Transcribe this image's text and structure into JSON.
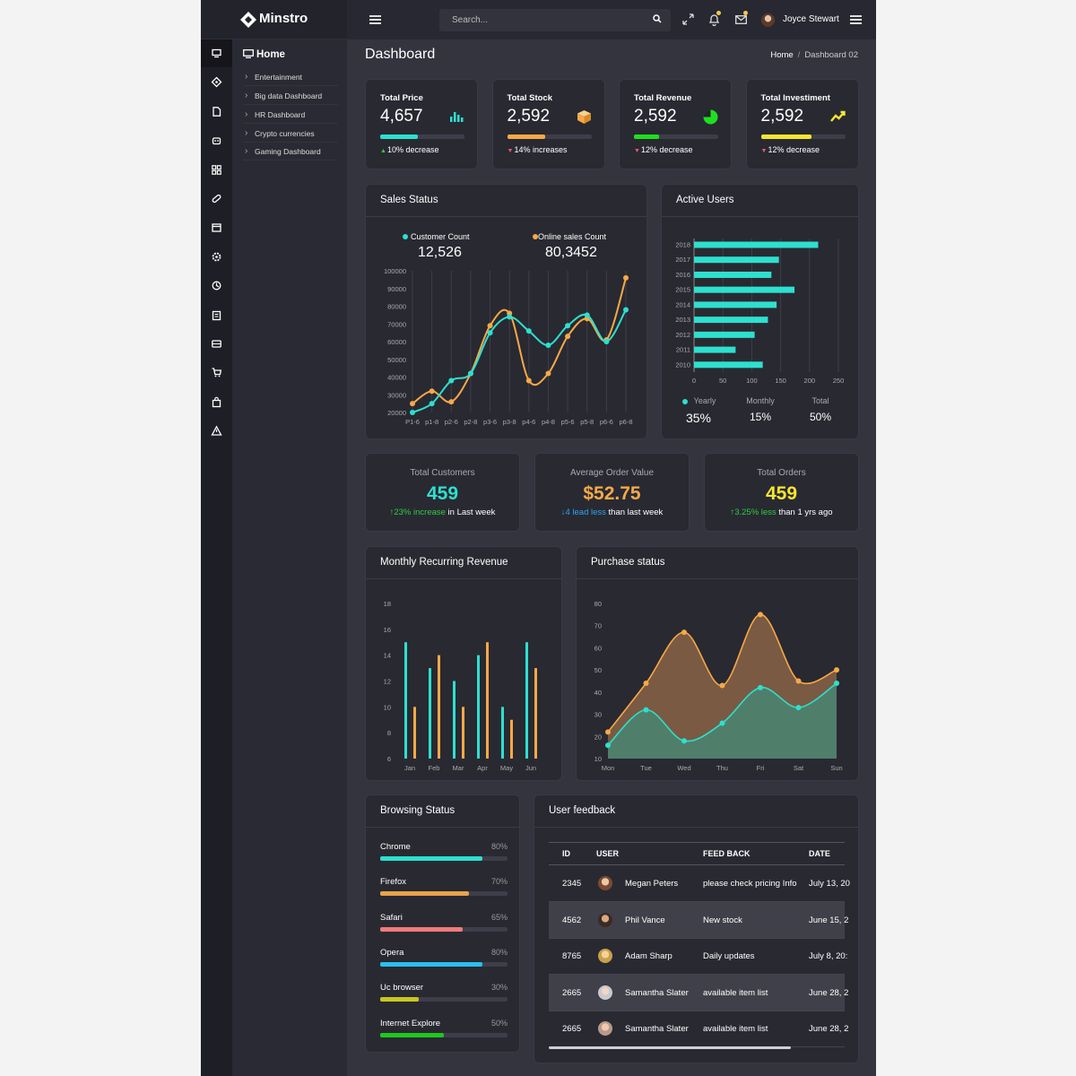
{
  "app": {
    "name": "Minstro"
  },
  "topbar": {
    "search_placeholder": "Search...",
    "user_name": "Joyce Stewart"
  },
  "sidebar": {
    "icons": [
      "monitor-icon",
      "diamond-icon",
      "document-icon",
      "robot-icon",
      "grid-icon",
      "pill-icon",
      "calendar-icon",
      "settings-icon",
      "tracking-icon",
      "clipboard-icon",
      "ticket-icon",
      "cart-icon",
      "bag-icon",
      "warning-icon"
    ],
    "submenu_title": "Home",
    "items": [
      "Entertainment",
      "Big data Dashboard",
      "HR Dashboard",
      "Crypto currencies",
      "Gaming Dashboard"
    ]
  },
  "page": {
    "title": "Dashboard",
    "breadcrumb": {
      "home": "Home",
      "current": "Dashboard 02"
    }
  },
  "stats": [
    {
      "label": "Total Price",
      "value": "4,657",
      "change": "10% decrease",
      "direction": "up",
      "progress": 0.45,
      "color": "#2de0cf",
      "icon": "bar-chart-icon"
    },
    {
      "label": "Total Stock",
      "value": "2,592",
      "change": "14% increases",
      "direction": "down",
      "progress": 0.45,
      "color": "#f6a947",
      "icon": "box-icon"
    },
    {
      "label": "Total Revenue",
      "value": "2,592",
      "change": "12% decrease",
      "direction": "down",
      "progress": 0.3,
      "color": "#1ee01e",
      "icon": "pie-icon"
    },
    {
      "label": "Total Investiment",
      "value": "2,592",
      "change": "12% decrease",
      "direction": "down",
      "progress": 0.6,
      "color": "#f5e630",
      "icon": "trend-up-icon"
    }
  ],
  "sales_status": {
    "title": "Sales Status",
    "legend": [
      {
        "name": "Customer Count",
        "value": "12,526",
        "color": "#2de0cf"
      },
      {
        "name": "Online sales Count",
        "value": "80,3452",
        "color": "#f6a947"
      }
    ]
  },
  "active_users": {
    "title": "Active Users",
    "stats": [
      {
        "label": "Yearly",
        "value": "35%"
      },
      {
        "label": "Monthly",
        "value": "15%"
      },
      {
        "label": "Total",
        "value": "50%"
      }
    ]
  },
  "kpis": [
    {
      "label": "Total Customers",
      "value": "459",
      "value_color": "#2de0cf",
      "delta": "23% increase",
      "delta_color": "#2ecc40",
      "suffix": " in Last week",
      "arrow": "up"
    },
    {
      "label": "Average Order Value",
      "value": "$52.75",
      "value_color": "#f6a947",
      "delta": "4 lead less",
      "delta_color": "#29a8f0",
      "suffix": " than last week",
      "arrow": "down"
    },
    {
      "label": "Total Orders",
      "value": "459",
      "value_color": "#f5e630",
      "delta": "3.25% less",
      "delta_color": "#2ecc40",
      "suffix": " than 1 yrs ago",
      "arrow": "up"
    }
  ],
  "mrr": {
    "title": "Monthly Recurring Revenue"
  },
  "purchase": {
    "title": "Purchase status"
  },
  "browsing": {
    "title": "Browsing Status",
    "items": [
      {
        "name": "Chrome",
        "pct": "80%",
        "value": 0.8,
        "color": "#2de0cf"
      },
      {
        "name": "Firefox",
        "pct": "70%",
        "value": 0.7,
        "color": "#e8a34c"
      },
      {
        "name": "Safari",
        "pct": "65%",
        "value": 0.65,
        "color": "#f07b7b"
      },
      {
        "name": "Opera",
        "pct": "80%",
        "value": 0.8,
        "color": "#29c0f0"
      },
      {
        "name": "Uc browser",
        "pct": "30%",
        "value": 0.3,
        "color": "#c8c81e"
      },
      {
        "name": "Internet Explore",
        "pct": "50%",
        "value": 0.5,
        "color": "#1ec81e"
      }
    ]
  },
  "feedback": {
    "title": "User feedback",
    "headers": [
      "ID",
      "USER",
      "FEED BACK",
      "DATE"
    ],
    "rows": [
      {
        "id": "2345",
        "user": "Megan Peters",
        "feedback": "please check pricing Info",
        "date": "July 13, 20"
      },
      {
        "id": "4562",
        "user": "Phil Vance",
        "feedback": "New stock",
        "date": "June 15, 2"
      },
      {
        "id": "8765",
        "user": "Adam Sharp",
        "feedback": "Daily updates",
        "date": "July 8, 20:"
      },
      {
        "id": "2665",
        "user": "Samantha Slater",
        "feedback": "available item list",
        "date": "June 28, 2"
      },
      {
        "id": "2665",
        "user": "Samantha Slater",
        "feedback": "available item list",
        "date": "June 28, 2"
      }
    ]
  },
  "chart_data": [
    {
      "type": "line",
      "title": "Sales Status",
      "categories": [
        "P1-6",
        "p1-8",
        "p2-6",
        "p2-8",
        "p3-6",
        "p3-8",
        "p4-6",
        "p4-8",
        "p5-6",
        "p5-8",
        "p6-6",
        "p6-8"
      ],
      "ylim": [
        20000,
        100000
      ],
      "yticks": [
        20000,
        30000,
        40000,
        50000,
        60000,
        70000,
        80000,
        90000,
        100000
      ],
      "series": [
        {
          "name": "Customer Count",
          "color": "#2de0cf",
          "values": [
            20000,
            25000,
            38000,
            42000,
            65000,
            74000,
            66000,
            58000,
            69000,
            75000,
            60000,
            78000
          ]
        },
        {
          "name": "Online sales Count",
          "color": "#f6a947",
          "values": [
            25000,
            32000,
            26000,
            42000,
            69000,
            76000,
            38000,
            42000,
            63000,
            73000,
            61000,
            96000
          ]
        }
      ]
    },
    {
      "type": "bar",
      "orientation": "horizontal",
      "title": "Active Users",
      "categories": [
        "2018",
        "2017",
        "2016",
        "2015",
        "2014",
        "2013",
        "2012",
        "2011",
        "2010"
      ],
      "values": [
        215,
        147,
        134,
        174,
        143,
        128,
        105,
        72,
        119
      ],
      "xlim": [
        0,
        250
      ],
      "xticks": [
        0,
        50,
        100,
        150,
        200,
        250
      ],
      "color": "#2de0cf"
    },
    {
      "type": "bar",
      "title": "Monthly Recurring Revenue",
      "categories": [
        "Jan",
        "Feb",
        "Mar",
        "Apr",
        "May",
        "Jun"
      ],
      "ylim": [
        6,
        18
      ],
      "yticks": [
        6,
        8,
        10,
        12,
        14,
        16,
        18
      ],
      "series": [
        {
          "color": "#2de0cf",
          "values": [
            15,
            13,
            12,
            14,
            10,
            15
          ]
        },
        {
          "color": "#f6a947",
          "values": [
            10,
            14,
            10,
            15,
            9,
            13
          ]
        }
      ]
    },
    {
      "type": "area",
      "title": "Purchase status",
      "categories": [
        "Mon",
        "Tue",
        "Wed",
        "Thu",
        "Fri",
        "Sat",
        "Sun"
      ],
      "ylim": [
        10,
        80
      ],
      "yticks": [
        10,
        20,
        30,
        40,
        50,
        60,
        70,
        80
      ],
      "series": [
        {
          "color": "#f6a947",
          "values": [
            22,
            44,
            67,
            43,
            75,
            45,
            50
          ]
        },
        {
          "color": "#2de0cf",
          "values": [
            16,
            32,
            18,
            26,
            42,
            33,
            44
          ]
        }
      ]
    }
  ]
}
